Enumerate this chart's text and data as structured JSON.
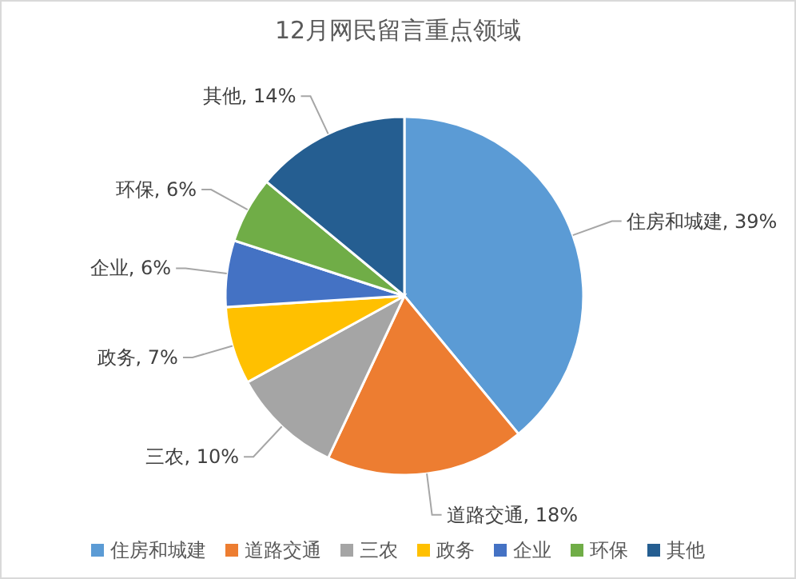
{
  "chart_data": {
    "type": "pie",
    "title": "12月网民留言重点领域",
    "categories": [
      "住房和城建",
      "道路交通",
      "三农",
      "政务",
      "企业",
      "环保",
      "其他"
    ],
    "values": [
      39,
      18,
      10,
      7,
      6,
      6,
      14
    ],
    "colors": [
      "#5b9bd5",
      "#ed7d31",
      "#a5a5a5",
      "#ffc000",
      "#4472c4",
      "#70ad47",
      "#255e91"
    ],
    "value_labels": [
      "住房和城建, 39%",
      "道路交通, 18%",
      "三农, 10%",
      "政务, 7%",
      "企业, 6%",
      "环保, 6%",
      "其他, 14%"
    ],
    "legend": "bottom"
  }
}
